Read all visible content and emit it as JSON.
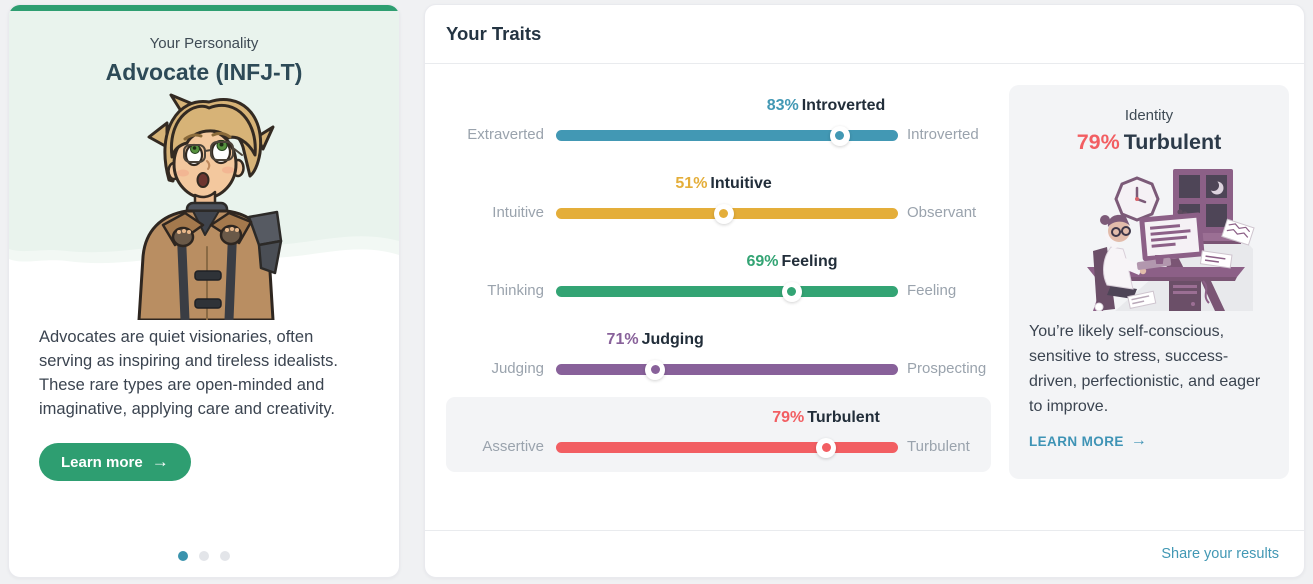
{
  "colors": {
    "accent_green": "#2e9e71",
    "mint_bg": "#e9f3ed",
    "link_blue": "#4298b4",
    "panel_bg": "#f3f4f6",
    "page_bg": "#f0f1f3"
  },
  "personality_card": {
    "eyebrow": "Your Personality",
    "title": "Advocate (INFJ-T)",
    "description": "Advocates are quiet visionaries, often serving as inspiring and tireless idealists. These rare types are open-minded and imaginative, applying care and creativity.",
    "learn_more_label": "Learn more",
    "arrow": "→",
    "carousel": {
      "count": 3,
      "active_index": 0
    }
  },
  "traits_card": {
    "title": "Your Traits",
    "traits": [
      {
        "percent_label": "83%",
        "percent_value": 83,
        "dominant": "Introverted",
        "left_label": "Extraverted",
        "right_label": "Introverted",
        "color": "#4298b4",
        "knob_percent": 83,
        "highlighted": false
      },
      {
        "percent_label": "51%",
        "percent_value": 51,
        "dominant": "Intuitive",
        "left_label": "Intuitive",
        "right_label": "Observant",
        "color": "#e4ae3a",
        "knob_percent": 49,
        "highlighted": false
      },
      {
        "percent_label": "69%",
        "percent_value": 69,
        "dominant": "Feeling",
        "left_label": "Thinking",
        "right_label": "Feeling",
        "color": "#33a474",
        "knob_percent": 69,
        "highlighted": false
      },
      {
        "percent_label": "71%",
        "percent_value": 71,
        "dominant": "Judging",
        "left_label": "Judging",
        "right_label": "Prospecting",
        "color": "#88619a",
        "knob_percent": 29,
        "highlighted": false
      },
      {
        "percent_label": "79%",
        "percent_value": 79,
        "dominant": "Turbulent",
        "left_label": "Assertive",
        "right_label": "Turbulent",
        "color": "#f25e62",
        "knob_percent": 79,
        "highlighted": true
      }
    ],
    "identity_panel": {
      "label": "Identity",
      "percent": "79%",
      "trait": "Turbulent",
      "percent_color": "#f25e62",
      "description": "You’re likely self-conscious, sensitive to stress, success-driven, perfectionistic, and eager to improve.",
      "learn_more_label": "LEARN MORE",
      "arrow": "→"
    },
    "footer_link": "Share your results"
  }
}
